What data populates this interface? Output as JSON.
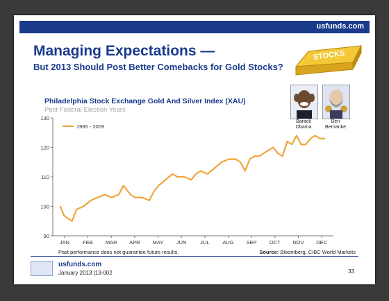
{
  "header": {
    "brand": "usfunds.com"
  },
  "slide": {
    "title": "Managing Expectations —",
    "subtitle": "But 2013 Should Post Better Comebacks for Gold Stocks?",
    "ingot_label": "STOCKS"
  },
  "portraits": [
    {
      "label_line1": "Barack",
      "label_line2": "Obama"
    },
    {
      "label_line1": "Ben",
      "label_line2": "Bernanke"
    }
  ],
  "chart_data": {
    "type": "line",
    "title": "Philadelphia Stock Exchange Gold And Silver Index (XAU)",
    "subtitle": "Post Federal Election Years",
    "ylim": [
      90,
      130
    ],
    "yticks": [
      90,
      100,
      110,
      120,
      130
    ],
    "categories": [
      "JAN",
      "FEB",
      "MAR",
      "APR",
      "MAY",
      "JUN",
      "JUL",
      "AUG",
      "SEP",
      "OCT",
      "NOV",
      "DEC"
    ],
    "legend": {
      "position": "top-left"
    },
    "series": [
      {
        "name": "1985 - 2009",
        "color": "#f0a43c",
        "x": [
          0,
          0.15,
          0.3,
          0.5,
          0.7,
          1.0,
          1.3,
          1.6,
          1.9,
          2.2,
          2.5,
          2.7,
          2.9,
          3.0,
          3.2,
          3.5,
          3.8,
          4.0,
          4.2,
          4.5,
          4.8,
          5.0,
          5.3,
          5.6,
          5.8,
          6.0,
          6.3,
          6.6,
          6.9,
          7.2,
          7.5,
          7.7,
          7.9,
          8.1,
          8.3,
          8.5,
          8.7,
          8.9,
          9.1,
          9.3,
          9.5,
          9.7,
          9.9,
          10.1,
          10.3,
          10.5,
          10.7,
          10.9,
          11.1,
          11.3
        ],
        "values": [
          100,
          97,
          96,
          95,
          99,
          100,
          102,
          103,
          104,
          103,
          104,
          107,
          105,
          104,
          103,
          103,
          102,
          105,
          107,
          109,
          111,
          110,
          110,
          109,
          111,
          112,
          111,
          113,
          115,
          116,
          116,
          115,
          112,
          116,
          117,
          117,
          118,
          119,
          120,
          118,
          117,
          122,
          121,
          124,
          121,
          121,
          123,
          124,
          123,
          123
        ]
      }
    ]
  },
  "footer": {
    "disclaimer": "Past performance does not guarantee future results.",
    "source_label": "Source:",
    "source_text": "Bloomberg, CIBC World Markets",
    "brand": "usfunds.com",
    "date": "January 2013 |13-002",
    "page_number": "33"
  },
  "colors": {
    "accent": "#1a3a8c",
    "line": "#f0a43c"
  }
}
